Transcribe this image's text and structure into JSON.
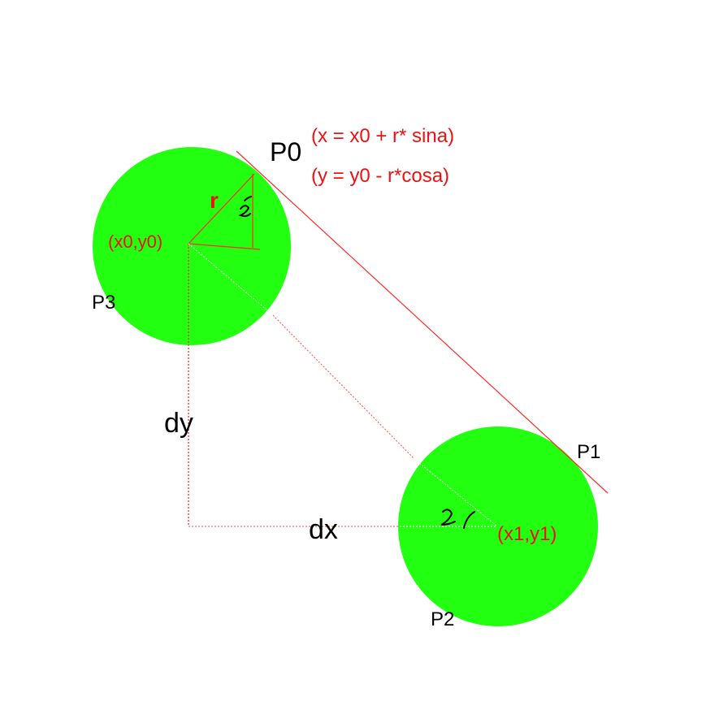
{
  "colors": {
    "background": "#ffffff",
    "circle_fill": "#22ff11",
    "line_red": "#ff2a2a",
    "dotted_white": "#e8ffe0",
    "label_red": "#ee1111",
    "label_black": "#000000"
  },
  "labels": {
    "p0": "P0",
    "p1": "P1",
    "p2": "P2",
    "p3": "P3",
    "formula_x": "(x = x0 + r* sina)",
    "formula_y": "(y = y0 - r*cosa)",
    "r": "r",
    "center0": "(x0,y0)",
    "center1": "(x1,y1)",
    "dy": "dy",
    "dx": "dx"
  }
}
